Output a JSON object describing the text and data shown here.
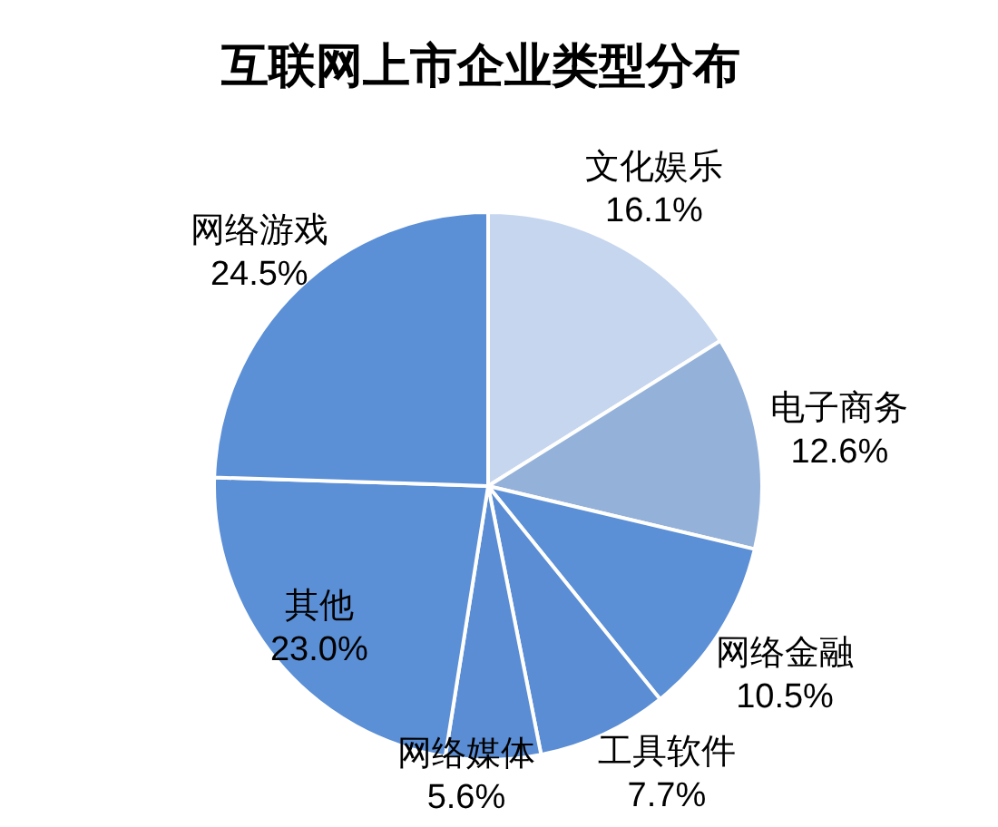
{
  "chart_data": {
    "type": "pie",
    "title": "互联网上市企业类型分布",
    "categories": [
      "文化娱乐",
      "电子商务",
      "网络金融",
      "工具软件",
      "网络媒体",
      "其他",
      "网络游戏"
    ],
    "values": [
      16.1,
      12.6,
      10.5,
      7.7,
      5.6,
      23.0,
      24.5
    ],
    "value_labels": [
      "16.1%",
      "12.6%",
      "10.5%",
      "7.7%",
      "5.6%",
      "23.0%",
      "24.5%"
    ],
    "colors": [
      "#c6d6ef",
      "#94b1d9",
      "#5b8fd6",
      "#5a8dd4",
      "#5a8dd4",
      "#5b8fd6",
      "#5b8fd6"
    ]
  }
}
